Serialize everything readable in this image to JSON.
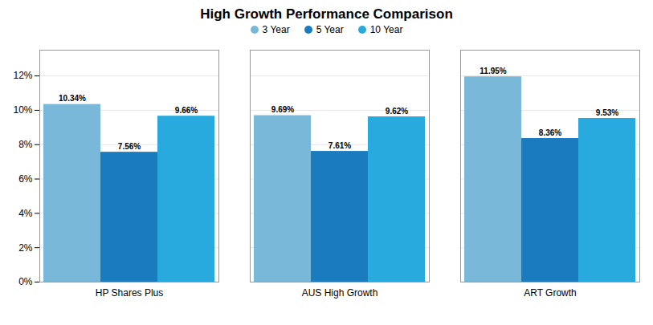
{
  "chart_data": {
    "type": "bar",
    "title": "High Growth Performance Comparison",
    "categories": [
      "HP Shares Plus",
      "AUS High Growth",
      "ART Growth"
    ],
    "series": [
      {
        "name": "3 Year",
        "color": "#7ab8d9",
        "values": [
          10.34,
          9.69,
          11.95
        ],
        "value_labels": [
          "10.34%",
          "9.69%",
          "11.95%"
        ]
      },
      {
        "name": "5 Year",
        "color": "#1a7bbf",
        "values": [
          7.56,
          7.61,
          8.36
        ],
        "value_labels": [
          "7.56%",
          "7.61%",
          "8.36%"
        ]
      },
      {
        "name": "10 Year",
        "color": "#29aadf",
        "values": [
          9.66,
          9.62,
          9.53
        ],
        "value_labels": [
          "9.66%",
          "9.62%",
          "9.53%"
        ]
      }
    ],
    "ylim": [
      0,
      13.5
    ],
    "yticks": [
      {
        "value": 0,
        "label": "0%"
      },
      {
        "value": 2,
        "label": "2%"
      },
      {
        "value": 4,
        "label": "4%"
      },
      {
        "value": 6,
        "label": "6%"
      },
      {
        "value": 8,
        "label": "8%"
      },
      {
        "value": 10,
        "label": "10%"
      },
      {
        "value": 12,
        "label": "12%"
      }
    ],
    "grid": true,
    "data_labels": true,
    "legend": "top"
  }
}
